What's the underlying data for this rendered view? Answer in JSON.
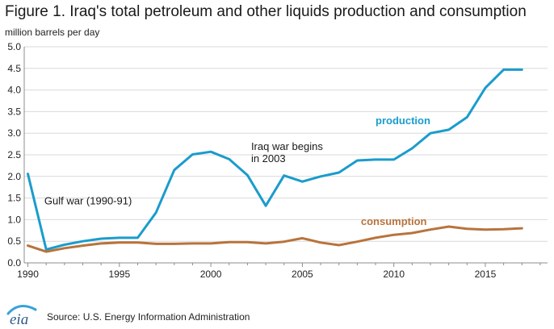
{
  "page": {
    "title": "Figure 1. Iraq's total petroleum and other liquids production and consumption",
    "unit_label": "million barrels per day",
    "source": "Source: U.S. Energy Information Administration",
    "logo_text": "eia"
  },
  "colors": {
    "production": "#1a9ccc",
    "consumption": "#b8733c",
    "grid": "#d9d9d9",
    "axis": "#8c8c8c",
    "logo_text": "#2b5b8a",
    "logo_arc": "#36a3d9"
  },
  "chart_data": {
    "type": "line",
    "title": "Figure 1. Iraq's total petroleum and other liquids production and consumption",
    "ylabel": "million barrels per day",
    "xlabel": "",
    "x": [
      1990,
      1991,
      1992,
      1993,
      1994,
      1995,
      1996,
      1997,
      1998,
      1999,
      2000,
      2001,
      2002,
      2003,
      2004,
      2005,
      2006,
      2007,
      2008,
      2009,
      2010,
      2011,
      2012,
      2013,
      2014,
      2015,
      2016,
      2017
    ],
    "xlim": [
      1989.8,
      2018.4
    ],
    "ylim": [
      0,
      5
    ],
    "x_ticks": [
      1990,
      1995,
      2000,
      2005,
      2010,
      2015
    ],
    "x_tick_labels": [
      "1990",
      "1995",
      "2000",
      "2005",
      "2010",
      "2015"
    ],
    "y_ticks": [
      0,
      0.5,
      1,
      1.5,
      2,
      2.5,
      3,
      3.5,
      4,
      4.5,
      5
    ],
    "y_tick_labels": [
      "0.0",
      "0.5",
      "1.0",
      "1.5",
      "2.0",
      "2.5",
      "3.0",
      "3.5",
      "4.0",
      "4.5",
      "5.0"
    ],
    "grid": "horizontal",
    "series": [
      {
        "name": "production",
        "values": [
          2.06,
          0.31,
          0.42,
          0.5,
          0.56,
          0.58,
          0.58,
          1.16,
          2.15,
          2.51,
          2.57,
          2.4,
          2.03,
          1.32,
          2.02,
          1.88,
          2.0,
          2.09,
          2.37,
          2.39,
          2.39,
          2.65,
          3.0,
          3.08,
          3.37,
          4.05,
          4.47,
          4.47
        ]
      },
      {
        "name": "consumption",
        "values": [
          0.4,
          0.26,
          0.34,
          0.4,
          0.45,
          0.47,
          0.47,
          0.44,
          0.44,
          0.45,
          0.45,
          0.48,
          0.48,
          0.45,
          0.49,
          0.57,
          0.47,
          0.41,
          0.49,
          0.58,
          0.65,
          0.69,
          0.77,
          0.84,
          0.79,
          0.77,
          0.78,
          0.8
        ]
      }
    ],
    "annotations": [
      {
        "lines": [
          "Gulf war (1990-91)"
        ],
        "x": 1990.9,
        "y": 1.35
      },
      {
        "lines": [
          "Iraq war begins",
          "in 2003"
        ],
        "x": 2002.2,
        "y": 2.61
      }
    ],
    "series_labels": [
      {
        "series": "production",
        "text": "production",
        "x": 2009.0,
        "y": 3.21
      },
      {
        "series": "consumption",
        "text": "consumption",
        "x": 2008.2,
        "y": 0.88
      }
    ]
  }
}
